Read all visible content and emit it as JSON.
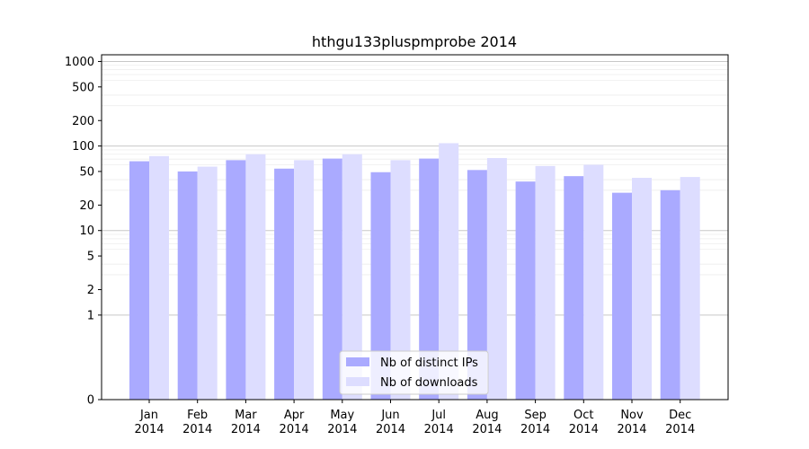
{
  "chart_data": {
    "type": "bar",
    "title": "hthgu133pluspmprobe 2014",
    "xlabel": "",
    "ylabel": "",
    "y_scale": "symlog",
    "ylim": [
      0,
      1200
    ],
    "y_ticks": [
      0,
      1,
      2,
      5,
      10,
      20,
      50,
      100,
      200,
      500,
      1000
    ],
    "grid": true,
    "legend_position": "bottom-center",
    "categories": [
      [
        "Jan",
        "2014"
      ],
      [
        "Feb",
        "2014"
      ],
      [
        "Mar",
        "2014"
      ],
      [
        "Apr",
        "2014"
      ],
      [
        "May",
        "2014"
      ],
      [
        "Jun",
        "2014"
      ],
      [
        "Jul",
        "2014"
      ],
      [
        "Aug",
        "2014"
      ],
      [
        "Sep",
        "2014"
      ],
      [
        "Oct",
        "2014"
      ],
      [
        "Nov",
        "2014"
      ],
      [
        "Dec",
        "2014"
      ]
    ],
    "series": [
      {
        "name": "Nb of distinct IPs",
        "color": "#aaaaff",
        "values": [
          66,
          50,
          68,
          54,
          71,
          49,
          71,
          52,
          38,
          44,
          28,
          30
        ]
      },
      {
        "name": "Nb of downloads",
        "color": "#ddddff",
        "values": [
          76,
          57,
          80,
          68,
          80,
          68,
          108,
          72,
          58,
          60,
          42,
          43
        ]
      }
    ]
  }
}
